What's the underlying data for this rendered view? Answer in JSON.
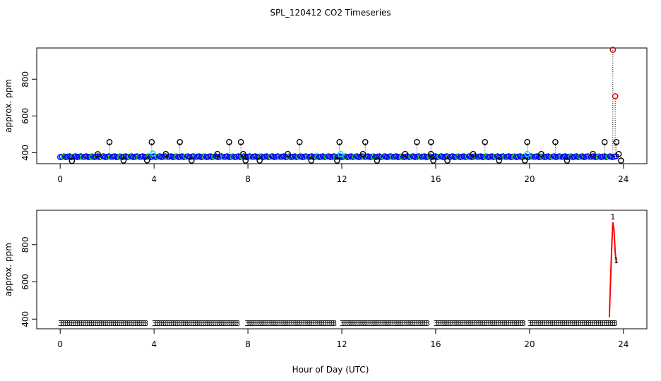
{
  "figure": {
    "title": "SPL_120412  CO2 Timeseries",
    "xlabel": "Hour of Day (UTC)"
  },
  "colors": {
    "frame": "#000000",
    "main_series": "#0000ff",
    "flagged_circle": "#000000",
    "spike_circle": "#cc0000",
    "cyan_marker": "#00e5ee",
    "green_marker": "#00cc00",
    "line_series": "#ff0000",
    "digit_marker": "#00cdcd"
  },
  "chart_data": [
    {
      "type": "scatter",
      "title": "",
      "xlabel": "",
      "ylabel": "approx. ppm",
      "xlim": [
        -1,
        25
      ],
      "ylim": [
        340,
        970
      ],
      "xticks": [
        0,
        4,
        8,
        12,
        16,
        20,
        24
      ],
      "yticks": [
        400,
        600,
        800
      ],
      "grid": false,
      "baseline": {
        "x_range": [
          0,
          23.7
        ],
        "y": 378,
        "step_hours": 0.08,
        "description_series": "dense blue/green circles along baseline"
      },
      "series": [
        {
          "marker": "circle",
          "color_key": "flagged_circle",
          "drop_lines": true,
          "points": [
            [
              0.5,
              355
            ],
            [
              1.6,
              392
            ],
            [
              2.1,
              458
            ],
            [
              2.7,
              357
            ],
            [
              3.7,
              358
            ],
            [
              3.9,
              458
            ],
            [
              4.5,
              393
            ],
            [
              5.1,
              458
            ],
            [
              5.6,
              357
            ],
            [
              6.7,
              393
            ],
            [
              7.2,
              458
            ],
            [
              7.7,
              458
            ],
            [
              7.8,
              393
            ],
            [
              7.9,
              357
            ],
            [
              8.5,
              357
            ],
            [
              9.7,
              393
            ],
            [
              10.2,
              458
            ],
            [
              10.7,
              357
            ],
            [
              11.8,
              357
            ],
            [
              11.9,
              458
            ],
            [
              12.9,
              393
            ],
            [
              13.0,
              458
            ],
            [
              13.5,
              357
            ],
            [
              14.7,
              393
            ],
            [
              15.2,
              458
            ],
            [
              15.8,
              458
            ],
            [
              15.8,
              393
            ],
            [
              15.9,
              357
            ],
            [
              16.5,
              357
            ],
            [
              17.6,
              393
            ],
            [
              18.1,
              458
            ],
            [
              18.7,
              357
            ],
            [
              19.8,
              357
            ],
            [
              19.9,
              458
            ],
            [
              20.5,
              393
            ],
            [
              21.1,
              458
            ],
            [
              21.6,
              357
            ],
            [
              22.7,
              393
            ],
            [
              23.2,
              458
            ],
            [
              23.7,
              458
            ],
            [
              23.8,
              393
            ],
            [
              23.9,
              357
            ]
          ]
        },
        {
          "marker": "circle",
          "color_key": "spike_circle",
          "drop_lines": true,
          "points": [
            [
              23.55,
              960
            ],
            [
              23.65,
              707
            ]
          ]
        },
        {
          "marker": "circle",
          "color_key": "cyan_marker",
          "drop_lines": false,
          "points": [
            [
              3.95,
              395
            ],
            [
              11.95,
              393
            ],
            [
              19.9,
              393
            ]
          ]
        }
      ]
    },
    {
      "type": "scatter",
      "title": "",
      "xlabel": "Hour of Day (UTC)",
      "ylabel": "approx. ppm",
      "xlim": [
        -1,
        25
      ],
      "ylim": [
        348,
        985
      ],
      "xticks": [
        0,
        4,
        8,
        12,
        16,
        20,
        24
      ],
      "yticks": [
        400,
        600,
        800
      ],
      "grid": false,
      "digit_label": "3",
      "spike_label": "1",
      "baseline_segments": [
        [
          0,
          3.7
        ],
        [
          4.0,
          7.6
        ],
        [
          7.95,
          11.7
        ],
        [
          12.0,
          15.7
        ],
        [
          16.0,
          19.8
        ],
        [
          20.0,
          23.7
        ]
      ],
      "baseline_y": 378,
      "step_hours": 0.085,
      "series": [
        {
          "marker": "line",
          "color_key": "line_series",
          "points": [
            [
              23.4,
              410
            ],
            [
              23.45,
              600
            ],
            [
              23.5,
              780
            ],
            [
              23.55,
              920
            ],
            [
              23.6,
              880
            ],
            [
              23.65,
              760
            ],
            [
              23.7,
              700
            ]
          ]
        },
        {
          "marker": "digit",
          "color_key": "line_series",
          "points": [
            [
              23.55,
              950
            ],
            [
              23.7,
              715
            ]
          ]
        }
      ]
    }
  ]
}
